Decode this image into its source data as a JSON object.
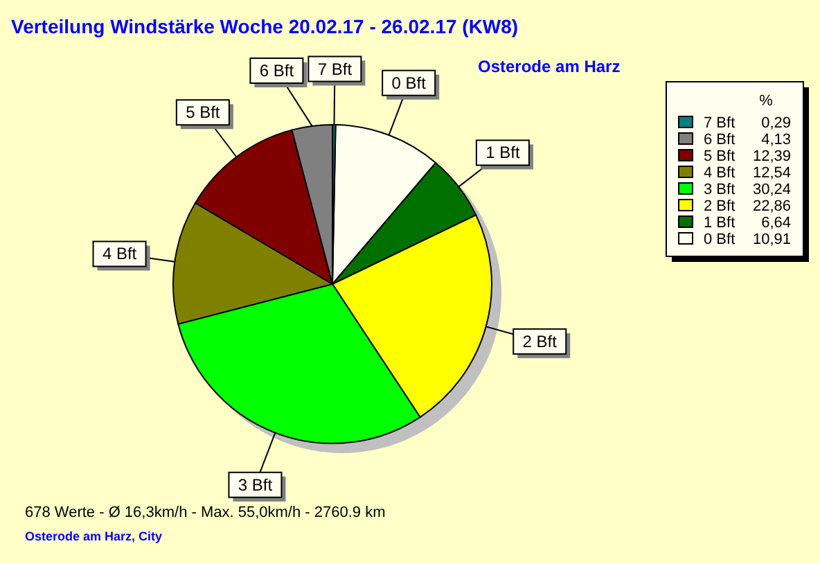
{
  "chart_data": {
    "type": "pie",
    "title": "Verteilung Windstärke  Woche 20.02.17 - 26.02.17 (KW8)",
    "subtitle": "Osterode am Harz",
    "legend_title": "%",
    "categories": [
      "0 Bft",
      "1 Bft",
      "2 Bft",
      "3 Bft",
      "4 Bft",
      "5 Bft",
      "6 Bft",
      "7 Bft"
    ],
    "values": [
      10.91,
      6.64,
      22.86,
      30.24,
      12.54,
      12.39,
      4.13,
      0.29
    ],
    "value_labels": [
      "10,91",
      "6,64",
      "22,86",
      "30,24",
      "12,54",
      "12,39",
      "4,13",
      "0,29"
    ],
    "colors": [
      "#fffff0",
      "#007000",
      "#ffff00",
      "#00ff00",
      "#808000",
      "#800000",
      "#808080",
      "#008080"
    ],
    "legend": "right",
    "annotations": [
      "678 Werte   -   Ø 16,3km/h  -  Max. 55,0km/h   -   2760.9 km",
      "Osterode am Harz, City"
    ]
  }
}
